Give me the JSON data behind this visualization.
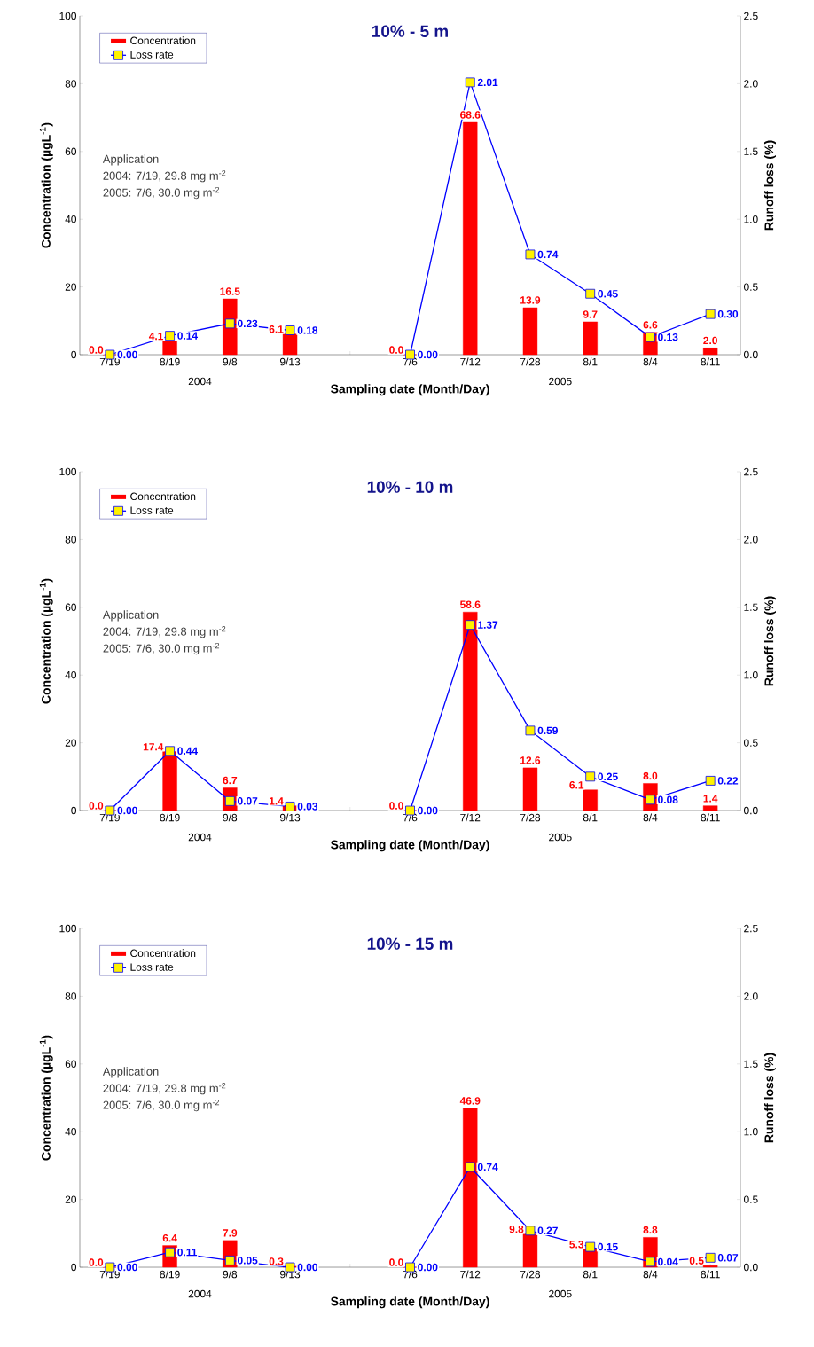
{
  "chart_data": [
    {
      "type": "bar",
      "title": "10% - 5 m",
      "xlabel": "Sampling date (Month/Day)",
      "ylabel": "Concentration (µgL$^{-1}$)",
      "y2label": "Runoff loss (%)",
      "categories": [
        "7/19",
        "8/19",
        "9/8",
        "9/13",
        null,
        "7/6",
        "7/12",
        "7/28",
        "8/1",
        "8/4",
        "8/11"
      ],
      "series": [
        {
          "name": "Concentration",
          "color": "#ff0000",
          "values": [
            0.0,
            4.1,
            16.5,
            6.1,
            null,
            0.0,
            68.6,
            13.9,
            9.7,
            6.6,
            2.0
          ],
          "value_labels": [
            "0.0",
            "4.1",
            "16.5",
            "6.1",
            null,
            "0.0",
            "68.6",
            "13.9",
            "9.7",
            "6.6",
            "2.0"
          ]
        },
        {
          "name": "Loss rate",
          "type": "line",
          "axis": "y2",
          "color": "#0000ff",
          "values": [
            0.0,
            0.14,
            0.23,
            0.18,
            null,
            0.0,
            2.01,
            0.74,
            0.45,
            0.13,
            0.3
          ],
          "value_labels": [
            "0.00",
            "0.14",
            "0.23",
            "0.18",
            null,
            "0.00",
            "2.01",
            "0.74",
            "0.45",
            "0.13",
            "0.30"
          ]
        }
      ],
      "marker": "square",
      "legend": "top left",
      "ylim": [
        0,
        100
      ],
      "yticks": [
        0,
        20,
        40,
        60,
        80,
        100
      ],
      "y2lim": [
        0,
        2.5
      ],
      "y2ticks": [
        {
          "value": 0,
          "label": "0.0"
        },
        {
          "value": 0.5,
          "label": "0.5"
        },
        {
          "value": 1,
          "label": "1.0"
        },
        {
          "value": 1.5,
          "label": "1.5"
        },
        {
          "value": 2,
          "label": "2.0"
        },
        {
          "value": 2.5,
          "label": "2.5"
        }
      ],
      "annotations": [
        "Application",
        "2004: 7/19, 29.8 mg m$^{-2}$",
        "2005: 7/6, 30.0 mg m$^{-2}$",
        "2004",
        "2005"
      ]
    },
    {
      "type": "bar",
      "title": "10% - 10 m",
      "xlabel": "Sampling date (Month/Day)",
      "ylabel": "Concentration (µgL$^{-1}$)",
      "y2label": "Runoff loss (%)",
      "categories": [
        "7/19",
        "8/19",
        "9/8",
        "9/13",
        null,
        "7/6",
        "7/12",
        "7/28",
        "8/1",
        "8/4",
        "8/11"
      ],
      "series": [
        {
          "name": "Concentration",
          "color": "#ff0000",
          "values": [
            0.0,
            17.4,
            6.7,
            1.4,
            null,
            0.0,
            58.6,
            12.6,
            6.1,
            8.0,
            1.4
          ],
          "value_labels": [
            "0.0",
            "17.4",
            "6.7",
            "1.4",
            null,
            "0.0",
            "58.6",
            "12.6",
            "6.1",
            "8.0",
            "1.4"
          ]
        },
        {
          "name": "Loss rate",
          "type": "line",
          "axis": "y2",
          "color": "#0000ff",
          "values": [
            0.0,
            0.44,
            0.07,
            0.03,
            null,
            0.0,
            1.37,
            0.59,
            0.25,
            0.08,
            0.22
          ],
          "value_labels": [
            "0.00",
            "0.44",
            "0.07",
            "0.03",
            null,
            "0.00",
            "1.37",
            "0.59",
            "0.25",
            "0.08",
            "0.22"
          ]
        }
      ],
      "marker": "square",
      "legend": "top left",
      "ylim": [
        0,
        100
      ],
      "yticks": [
        0,
        20,
        40,
        60,
        80,
        100
      ],
      "y2lim": [
        0,
        2.5
      ],
      "y2ticks": [
        {
          "value": 0,
          "label": "0.0"
        },
        {
          "value": 0.5,
          "label": "0.5"
        },
        {
          "value": 1,
          "label": "1.0"
        },
        {
          "value": 1.5,
          "label": "1.5"
        },
        {
          "value": 2,
          "label": "2.0"
        },
        {
          "value": 2.5,
          "label": "2.5"
        }
      ],
      "annotations": [
        "Application",
        "2004: 7/19, 29.8 mg m$^{-2}$",
        "2005: 7/6, 30.0 mg m$^{-2}$",
        "2004",
        "2005"
      ]
    },
    {
      "type": "bar",
      "title": "10% - 15 m",
      "xlabel": "Sampling date (Month/Day)",
      "ylabel": "Concentration (µgL$^{-1}$)",
      "y2label": "Runoff loss (%)",
      "categories": [
        "7/19",
        "8/19",
        "9/8",
        "9/13",
        null,
        "7/6",
        "7/12",
        "7/28",
        "8/1",
        "8/4",
        "8/11"
      ],
      "series": [
        {
          "name": "Concentration",
          "color": "#ff0000",
          "values": [
            0.0,
            6.4,
            7.9,
            0.3,
            null,
            0.0,
            46.9,
            9.8,
            5.3,
            8.8,
            0.5
          ],
          "value_labels": [
            "0.0",
            "6.4",
            "7.9",
            "0.3",
            null,
            "0.0",
            "46.9",
            "9.8",
            "5.3",
            "8.8",
            "0.5"
          ]
        },
        {
          "name": "Loss rate",
          "type": "line",
          "axis": "y2",
          "color": "#0000ff",
          "values": [
            0.0,
            0.11,
            0.05,
            0.0,
            null,
            0.0,
            0.74,
            0.27,
            0.15,
            0.04,
            0.07
          ],
          "value_labels": [
            "0.00",
            "0.11",
            "0.05",
            "0.00",
            null,
            "0.00",
            "0.74",
            "0.27",
            "0.15",
            "0.04",
            "0.07"
          ]
        }
      ],
      "marker": "square",
      "legend": "top left",
      "ylim": [
        0,
        100
      ],
      "yticks": [
        0,
        20,
        40,
        60,
        80,
        100
      ],
      "y2lim": [
        0,
        2.5
      ],
      "y2ticks": [
        {
          "value": 0,
          "label": "0.0"
        },
        {
          "value": 0.5,
          "label": "0.5"
        },
        {
          "value": 1,
          "label": "1.0"
        },
        {
          "value": 1.5,
          "label": "1.5"
        },
        {
          "value": 2,
          "label": "2.0"
        },
        {
          "value": 2.5,
          "label": "2.5"
        }
      ],
      "annotations": [
        "Application",
        "2004: 7/19, 29.8 mg m$^{-2}$",
        "2005: 7/6, 30.0 mg m$^{-2}$",
        "2004",
        "2005"
      ]
    }
  ]
}
